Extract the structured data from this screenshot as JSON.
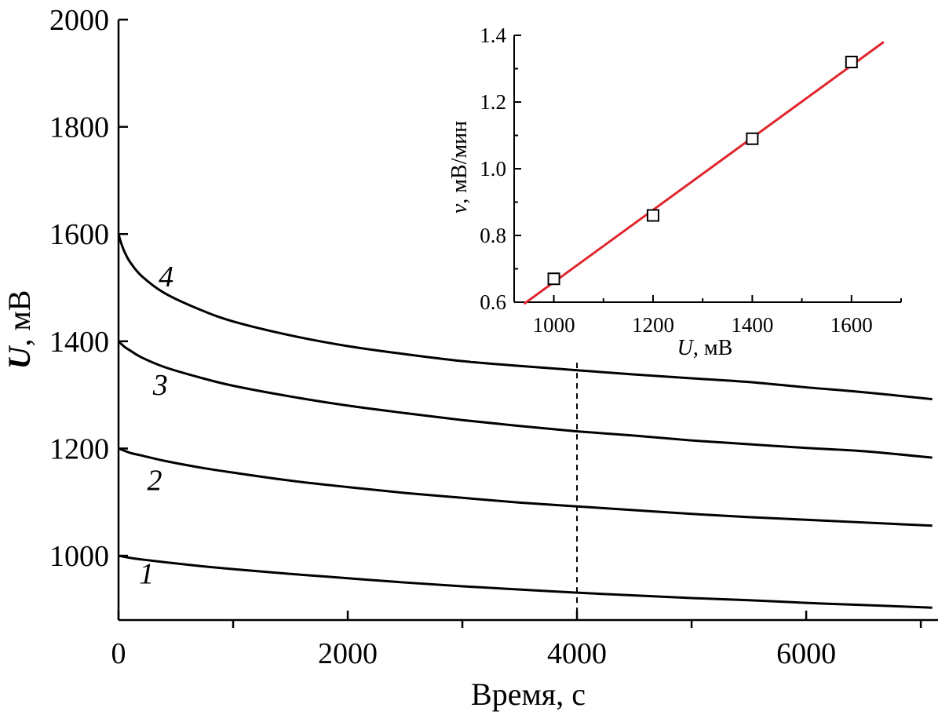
{
  "chart_data": [
    {
      "type": "line",
      "title": "",
      "xlabel": "Время, с",
      "ylabel_var": "U",
      "ylabel_unit": ", мВ",
      "xlim": [
        0,
        7150
      ],
      "ylim": [
        880,
        2000
      ],
      "xticks": [
        0,
        2000,
        4000,
        6000
      ],
      "xtick_labels": [
        "0",
        "2000",
        "4000",
        "6000"
      ],
      "yticks": [
        1000,
        1200,
        1400,
        1600,
        1800,
        2000
      ],
      "ytick_labels": [
        "1000",
        "1200",
        "1400",
        "1600",
        "1800",
        "2000"
      ],
      "grid": false,
      "vline_x": 4000,
      "series": [
        {
          "name": "1",
          "x": [
            0,
            100,
            200,
            400,
            700,
            1000,
            1500,
            2000,
            2500,
            3000,
            3500,
            4000,
            4500,
            5000,
            5500,
            6000,
            6500,
            7100
          ],
          "y": [
            1000,
            996,
            993,
            988,
            981,
            975,
            966,
            958,
            950,
            943,
            937,
            931,
            926,
            921,
            917,
            912,
            908,
            903
          ]
        },
        {
          "name": "2",
          "x": [
            0,
            100,
            200,
            400,
            700,
            1000,
            1500,
            2000,
            2500,
            3000,
            3500,
            4000,
            4500,
            5000,
            5500,
            6000,
            6500,
            7100
          ],
          "y": [
            1200,
            1192,
            1187,
            1177,
            1165,
            1155,
            1140,
            1128,
            1117,
            1108,
            1099,
            1092,
            1085,
            1078,
            1072,
            1067,
            1062,
            1056
          ]
        },
        {
          "name": "3",
          "x": [
            0,
            50,
            100,
            200,
            400,
            700,
            1000,
            1500,
            2000,
            2500,
            3000,
            3500,
            4000,
            4500,
            5000,
            5500,
            6000,
            6500,
            7100
          ],
          "y": [
            1400,
            1390,
            1383,
            1370,
            1352,
            1333,
            1317,
            1297,
            1280,
            1266,
            1253,
            1242,
            1232,
            1224,
            1215,
            1208,
            1201,
            1195,
            1183
          ]
        },
        {
          "name": "4",
          "x": [
            0,
            20,
            50,
            100,
            200,
            400,
            700,
            1000,
            1500,
            2000,
            2500,
            3000,
            3500,
            4000,
            4500,
            5000,
            5500,
            6000,
            6500,
            7100
          ],
          "y": [
            1600,
            1585,
            1568,
            1548,
            1522,
            1490,
            1460,
            1437,
            1411,
            1391,
            1376,
            1363,
            1354,
            1346,
            1338,
            1331,
            1324,
            1314,
            1305,
            1292
          ]
        }
      ]
    },
    {
      "type": "scatter",
      "title": "",
      "xlabel_var": "U",
      "xlabel_unit": ", мВ",
      "ylabel_var": "v",
      "ylabel_unit": ", мВ/мин",
      "xlim": [
        920,
        1700
      ],
      "ylim": [
        0.6,
        1.4
      ],
      "xticks": [
        1000,
        1200,
        1400,
        1600
      ],
      "xtick_labels": [
        "1000",
        "1200",
        "1400",
        "1600"
      ],
      "yticks": [
        0.6,
        0.8,
        1.0,
        1.2,
        1.4
      ],
      "ytick_labels": [
        "0.6",
        "0.8",
        "1.0",
        "1.2",
        "1.4"
      ],
      "points": {
        "x": [
          1000,
          1200,
          1400,
          1600
        ],
        "y": [
          0.67,
          0.86,
          1.09,
          1.32
        ]
      },
      "fit_line": {
        "x": [
          940,
          1665
        ],
        "y": [
          0.595,
          1.38
        ]
      },
      "fit_color": "#e0262e"
    }
  ],
  "colors": {
    "ink": "#000000",
    "fit": "#e0262e"
  }
}
